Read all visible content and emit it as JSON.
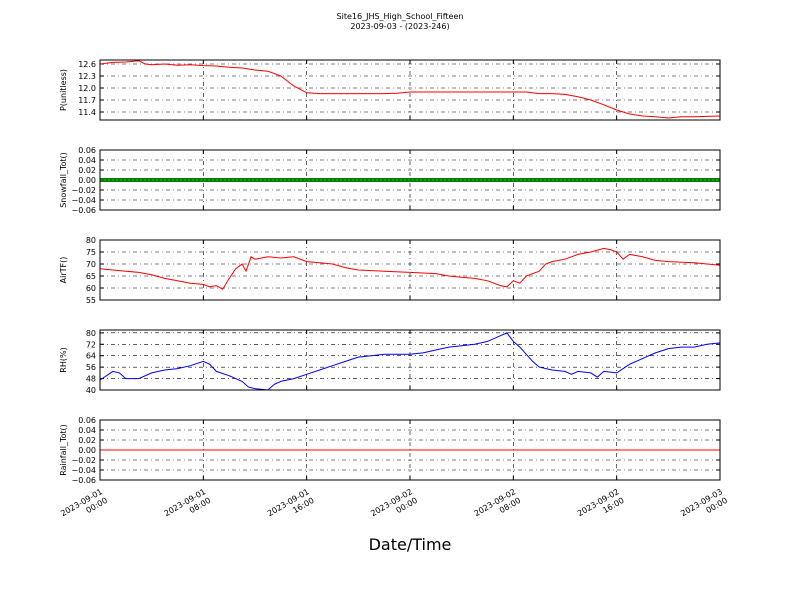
{
  "chart_data": {
    "type": "line",
    "title": "Site16_JHS_High_School_Fifteen",
    "subtitle": "2023-09-03 - (2023-246)",
    "xlabel": "Date/Time",
    "grid": true,
    "x_ticks": [
      {
        "value": 0,
        "date": "2023-09-01",
        "time": "00:00"
      },
      {
        "value": 8,
        "date": "2023-09-01",
        "time": "08:00"
      },
      {
        "value": 16,
        "date": "2023-09-01",
        "time": "16:00"
      },
      {
        "value": 24,
        "date": "2023-09-02",
        "time": "00:00"
      },
      {
        "value": 32,
        "date": "2023-09-02",
        "time": "08:00"
      },
      {
        "value": 40,
        "date": "2023-09-02",
        "time": "16:00"
      },
      {
        "value": 48,
        "date": "2023-09-03",
        "time": "00:00"
      }
    ],
    "panels": [
      {
        "ylabel": "P(unitless)",
        "color": "#ff0000",
        "ylim": [
          11.2,
          12.7
        ],
        "yticks": [
          11.4,
          11.7,
          12.0,
          12.3,
          12.6
        ],
        "tick_labels": [
          "11.4",
          "11.7",
          "12.0",
          "12.3",
          "12.6"
        ],
        "series": [
          [
            0,
            12.6
          ],
          [
            1,
            12.64
          ],
          [
            2,
            12.65
          ],
          [
            3,
            12.68
          ],
          [
            3.5,
            12.6
          ],
          [
            4,
            12.58
          ],
          [
            5,
            12.6
          ],
          [
            6,
            12.57
          ],
          [
            7,
            12.58
          ],
          [
            8,
            12.56
          ],
          [
            9,
            12.55
          ],
          [
            10,
            12.52
          ],
          [
            11,
            12.5
          ],
          [
            12,
            12.45
          ],
          [
            13,
            12.42
          ],
          [
            14,
            12.3
          ],
          [
            15,
            12.05
          ],
          [
            16,
            11.88
          ],
          [
            17,
            11.86
          ],
          [
            18,
            11.86
          ],
          [
            20,
            11.86
          ],
          [
            22,
            11.86
          ],
          [
            23,
            11.87
          ],
          [
            24,
            11.9
          ],
          [
            26,
            11.9
          ],
          [
            28,
            11.9
          ],
          [
            30,
            11.9
          ],
          [
            32,
            11.9
          ],
          [
            33,
            11.9
          ],
          [
            34,
            11.86
          ],
          [
            35,
            11.86
          ],
          [
            36,
            11.84
          ],
          [
            37,
            11.78
          ],
          [
            38,
            11.7
          ],
          [
            39,
            11.58
          ],
          [
            40,
            11.45
          ],
          [
            41,
            11.35
          ],
          [
            42,
            11.3
          ],
          [
            43,
            11.28
          ],
          [
            44,
            11.25
          ],
          [
            45,
            11.28
          ],
          [
            46,
            11.28
          ],
          [
            47,
            11.29
          ],
          [
            48,
            11.3
          ]
        ]
      },
      {
        "ylabel": "Snowfall_Tot()",
        "color": "#008000",
        "ylim": [
          -0.06,
          0.06
        ],
        "yticks": [
          -0.06,
          -0.04,
          -0.02,
          0.0,
          0.02,
          0.04,
          0.06
        ],
        "tick_labels": [
          "−0.06",
          "−0.04",
          "−0.02",
          "0.00",
          "0.02",
          "0.04",
          "0.06"
        ],
        "series": [
          [
            0,
            0
          ],
          [
            48,
            0
          ]
        ]
      },
      {
        "ylabel": "AirTF()",
        "color": "#ff0000",
        "ylim": [
          55,
          80
        ],
        "yticks": [
          55,
          60,
          65,
          70,
          75,
          80
        ],
        "tick_labels": [
          "55",
          "60",
          "65",
          "70",
          "75",
          "80"
        ],
        "series": [
          [
            0,
            68
          ],
          [
            1,
            67.5
          ],
          [
            2,
            67
          ],
          [
            3,
            66.5
          ],
          [
            4,
            65.5
          ],
          [
            5,
            64
          ],
          [
            6,
            63
          ],
          [
            7,
            62
          ],
          [
            8,
            61.5
          ],
          [
            8.5,
            60.5
          ],
          [
            9,
            61
          ],
          [
            9.5,
            59.5
          ],
          [
            10,
            64
          ],
          [
            10.5,
            68
          ],
          [
            11,
            70
          ],
          [
            11.3,
            67
          ],
          [
            11.7,
            73
          ],
          [
            12,
            72
          ],
          [
            13,
            73
          ],
          [
            14,
            72.5
          ],
          [
            15,
            73
          ],
          [
            16,
            71
          ],
          [
            17,
            70.5
          ],
          [
            18,
            70
          ],
          [
            19,
            68.5
          ],
          [
            20,
            67.5
          ],
          [
            22,
            67
          ],
          [
            24,
            66.5
          ],
          [
            26,
            66
          ],
          [
            27,
            65
          ],
          [
            28,
            64.5
          ],
          [
            29,
            64
          ],
          [
            30,
            63
          ],
          [
            31,
            61
          ],
          [
            31.5,
            60.5
          ],
          [
            32,
            63
          ],
          [
            32.5,
            62
          ],
          [
            33,
            65
          ],
          [
            34,
            67
          ],
          [
            34.5,
            70
          ],
          [
            35,
            71
          ],
          [
            36,
            72
          ],
          [
            37,
            74
          ],
          [
            38,
            75
          ],
          [
            39,
            76.5
          ],
          [
            39.5,
            76
          ],
          [
            40,
            75
          ],
          [
            40.5,
            72
          ],
          [
            41,
            74
          ],
          [
            42,
            73
          ],
          [
            43,
            71.5
          ],
          [
            44,
            71
          ],
          [
            46,
            70.5
          ],
          [
            47,
            70
          ],
          [
            48,
            69.5
          ]
        ]
      },
      {
        "ylabel": "RH(%)",
        "color": "#0000ff",
        "ylim": [
          40,
          82
        ],
        "yticks": [
          40,
          48,
          56,
          64,
          72,
          80
        ],
        "tick_labels": [
          "40",
          "48",
          "56",
          "64",
          "72",
          "80"
        ],
        "series": [
          [
            0,
            47
          ],
          [
            1,
            53
          ],
          [
            1.5,
            52
          ],
          [
            2,
            48
          ],
          [
            3,
            48
          ],
          [
            4,
            52
          ],
          [
            5,
            54
          ],
          [
            6,
            55
          ],
          [
            7,
            57
          ],
          [
            8,
            60
          ],
          [
            8.5,
            58
          ],
          [
            9,
            53
          ],
          [
            10,
            50
          ],
          [
            10.5,
            48
          ],
          [
            11,
            46
          ],
          [
            11.5,
            42
          ],
          [
            12,
            41
          ],
          [
            13,
            40
          ],
          [
            13.5,
            44
          ],
          [
            14,
            46
          ],
          [
            15,
            48
          ],
          [
            16,
            51
          ],
          [
            17,
            54
          ],
          [
            18,
            57
          ],
          [
            19,
            60
          ],
          [
            20,
            63
          ],
          [
            21,
            64
          ],
          [
            22,
            65
          ],
          [
            23,
            65
          ],
          [
            24,
            65
          ],
          [
            25,
            66
          ],
          [
            26,
            68
          ],
          [
            27,
            70
          ],
          [
            28,
            71
          ],
          [
            29,
            72
          ],
          [
            30,
            74
          ],
          [
            31,
            78
          ],
          [
            31.5,
            80
          ],
          [
            32,
            74
          ],
          [
            32.5,
            70
          ],
          [
            33,
            65
          ],
          [
            33.5,
            60
          ],
          [
            34,
            56
          ],
          [
            35,
            54
          ],
          [
            36,
            53
          ],
          [
            36.5,
            51
          ],
          [
            37,
            53
          ],
          [
            38,
            52
          ],
          [
            38.5,
            49
          ],
          [
            39,
            53
          ],
          [
            40,
            52
          ],
          [
            40.5,
            55
          ],
          [
            41,
            58
          ],
          [
            42,
            62
          ],
          [
            43,
            66
          ],
          [
            44,
            69
          ],
          [
            45,
            70
          ],
          [
            46,
            70
          ],
          [
            47,
            72
          ],
          [
            48,
            73
          ]
        ]
      },
      {
        "ylabel": "Rainfall_Tot()",
        "color": "#ff0000",
        "ylim": [
          -0.06,
          0.06
        ],
        "yticks": [
          -0.06,
          -0.04,
          -0.02,
          0.0,
          0.02,
          0.04,
          0.06
        ],
        "tick_labels": [
          "−0.06",
          "−0.04",
          "−0.02",
          "0.00",
          "0.02",
          "0.04",
          "0.06"
        ],
        "series": [
          [
            0,
            0
          ],
          [
            48,
            0
          ]
        ]
      }
    ]
  }
}
